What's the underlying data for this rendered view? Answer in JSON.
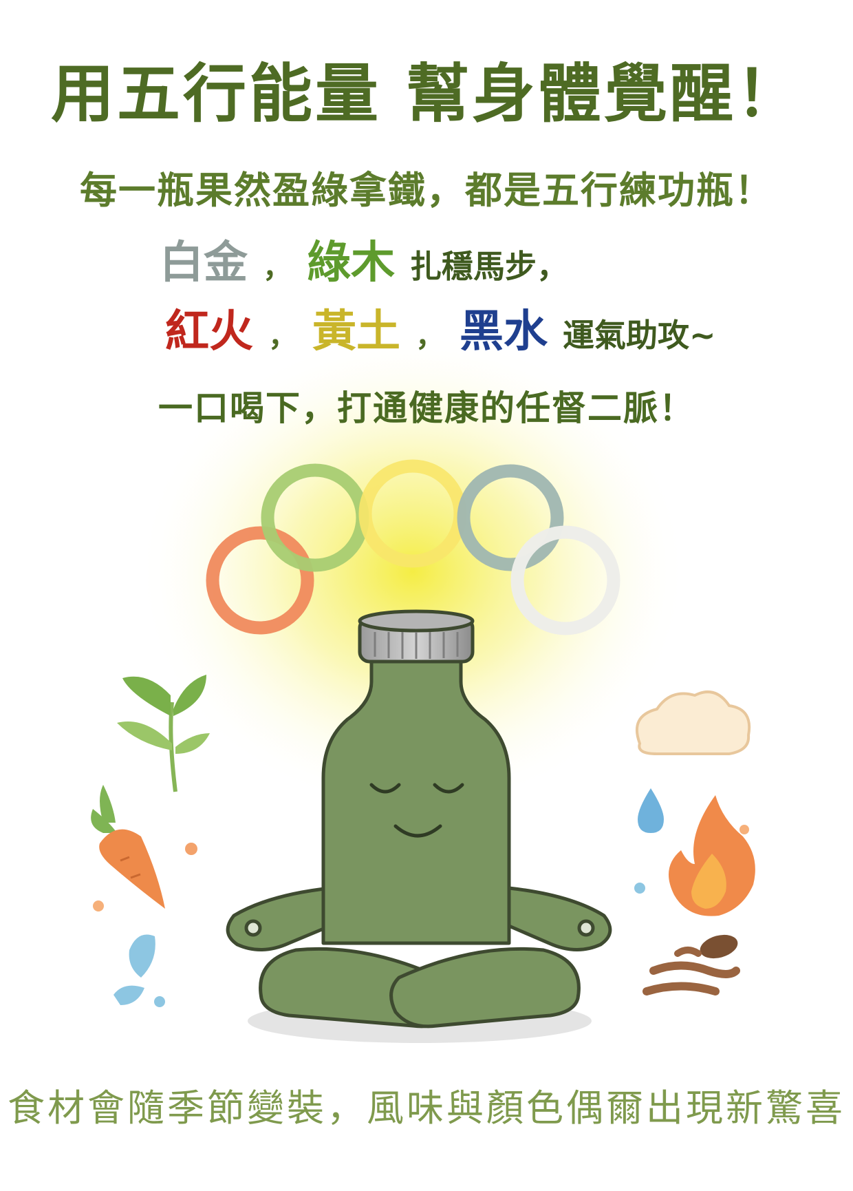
{
  "poster": {
    "title": "用五行能量 幫身體覺醒！",
    "subtitle": "每一瓶果然盈綠拿鐵，都是五行練功瓶！",
    "line1": {
      "element1": "白金",
      "sep1": "，",
      "element2": "綠木",
      "tail": "扎穩馬步，"
    },
    "line2": {
      "element1": "紅火",
      "sep1": "，",
      "element2": "黃土",
      "sep2": "，",
      "element3": "黑水",
      "tail": "運氣助攻~"
    },
    "line3": "一口喝下，打通健康的任督二脈！",
    "footer": "食材會隨季節變裝，風味與顏色偶爾出現新驚喜"
  },
  "colors": {
    "metal": "#8e9b98",
    "wood": "#5e9b2d",
    "fire": "#c0271d",
    "earth": "#c9b52a",
    "water": "#1f3f8f",
    "title": "#4e6b24",
    "bottle": "#7a9560",
    "glow": "#f4ec3a"
  },
  "illustration": {
    "rings": [
      "orange",
      "light-green",
      "yellow",
      "grey-blue",
      "white"
    ],
    "icons": [
      "leaf-icon",
      "carrot-icon",
      "water-drop-icon",
      "cloud-icon",
      "flame-icon",
      "coffee-beans-icon"
    ]
  }
}
